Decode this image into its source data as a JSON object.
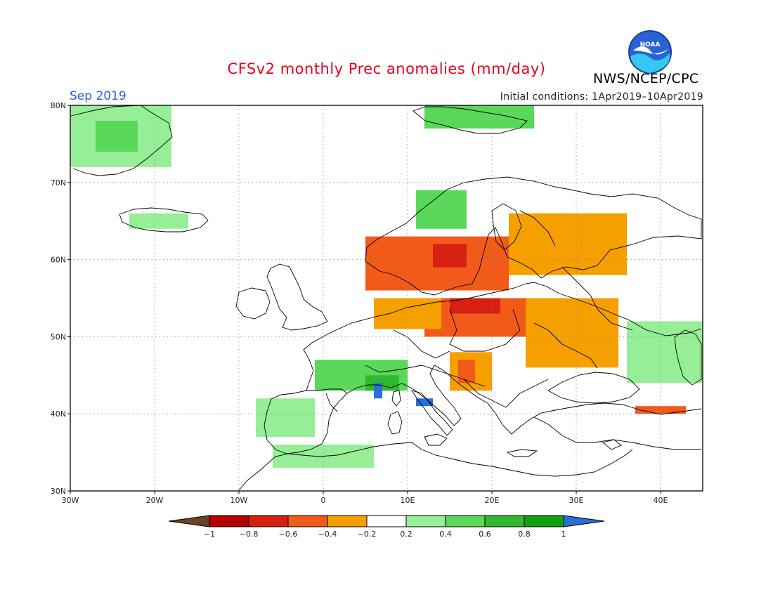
{
  "title": "CFSv2 monthly Prec anomalies (mm/day)",
  "month": "Sep 2019",
  "initial_conditions": "Initial conditions: 1Apr2019–10Apr2019",
  "agency": "NWS/NCEP/CPC",
  "logo_text": "NOAA",
  "lat_labels": [
    "80N",
    "70N",
    "60N",
    "50N",
    "40N",
    "30N"
  ],
  "lon_labels": [
    "30W",
    "20W",
    "10W",
    "0",
    "10E",
    "20E",
    "30E",
    "40E"
  ],
  "legend": {
    "tick_labels": [
      "−1",
      "−0.8",
      "−0.6",
      "−0.4",
      "−0.2",
      "0.2",
      "0.4",
      "0.6",
      "0.8",
      "1"
    ],
    "colors": [
      "#6b4226",
      "#b30000",
      "#d62010",
      "#f25a1a",
      "#f5a000",
      "#ffffff",
      "#96ee96",
      "#5ad85a",
      "#30b830",
      "#12a012",
      "#2a6ed8"
    ]
  },
  "colors": {
    "title": "#e8001c",
    "month": "#2a5cd8",
    "land_outline": "#000000",
    "grid": "#888888"
  },
  "anomaly_regions": [
    {
      "name": "south-sweden-norway",
      "value": -0.6,
      "lon": [
        5,
        22
      ],
      "lat": [
        56,
        63
      ]
    },
    {
      "name": "central-sweden-core",
      "value": -0.8,
      "lon": [
        13,
        17
      ],
      "lat": [
        59,
        62
      ]
    },
    {
      "name": "finland-russia-nw",
      "value": -0.4,
      "lon": [
        22,
        36
      ],
      "lat": [
        58,
        66
      ]
    },
    {
      "name": "poland-belarus",
      "value": -0.6,
      "lon": [
        12,
        26
      ],
      "lat": [
        50,
        55
      ]
    },
    {
      "name": "baltic-core",
      "value": -0.8,
      "lon": [
        15,
        21
      ],
      "lat": [
        53,
        55
      ]
    },
    {
      "name": "north-germany-denmark",
      "value": -0.4,
      "lon": [
        6,
        14
      ],
      "lat": [
        51,
        55
      ]
    },
    {
      "name": "ukraine-russia-west",
      "value": -0.4,
      "lon": [
        24,
        35
      ],
      "lat": [
        46,
        55
      ]
    },
    {
      "name": "balkans-west",
      "value": -0.4,
      "lon": [
        15,
        20
      ],
      "lat": [
        43,
        48
      ]
    },
    {
      "name": "balkans-core",
      "value": -0.6,
      "lon": [
        16,
        18
      ],
      "lat": [
        44,
        47
      ]
    },
    {
      "name": "turkey-north",
      "value": -0.6,
      "lon": [
        37,
        43
      ],
      "lat": [
        40,
        41
      ]
    },
    {
      "name": "greenland",
      "value": 0.2,
      "lon": [
        -30,
        -18
      ],
      "lat": [
        72,
        80
      ]
    },
    {
      "name": "greenland-east",
      "value": 0.4,
      "lon": [
        -27,
        -22
      ],
      "lat": [
        74,
        78
      ]
    },
    {
      "name": "svalbard",
      "value": 0.4,
      "lon": [
        12,
        25
      ],
      "lat": [
        77,
        80
      ]
    },
    {
      "name": "norway-coast",
      "value": 0.4,
      "lon": [
        11,
        17
      ],
      "lat": [
        64,
        69
      ]
    },
    {
      "name": "france-alps",
      "value": 0.4,
      "lon": [
        -1,
        10
      ],
      "lat": [
        43,
        47
      ]
    },
    {
      "name": "alps-core",
      "value": 0.6,
      "lon": [
        5,
        9
      ],
      "lat": [
        43,
        45
      ]
    },
    {
      "name": "iberia-west",
      "value": 0.2,
      "lon": [
        -8,
        -1
      ],
      "lat": [
        37,
        42
      ]
    },
    {
      "name": "north-africa",
      "value": 0.2,
      "lon": [
        -6,
        6
      ],
      "lat": [
        33,
        36
      ]
    },
    {
      "name": "russia-east",
      "value": 0.2,
      "lon": [
        36,
        45
      ],
      "lat": [
        44,
        52
      ]
    },
    {
      "name": "iceland",
      "value": 0.2,
      "lon": [
        -23,
        -16
      ],
      "lat": [
        64,
        66
      ]
    },
    {
      "name": "corsica-blue",
      "value": 1.0,
      "lon": [
        6,
        7
      ],
      "lat": [
        42,
        44
      ]
    },
    {
      "name": "italy-blue",
      "value": 1.0,
      "lon": [
        11,
        13
      ],
      "lat": [
        41,
        42
      ]
    }
  ]
}
